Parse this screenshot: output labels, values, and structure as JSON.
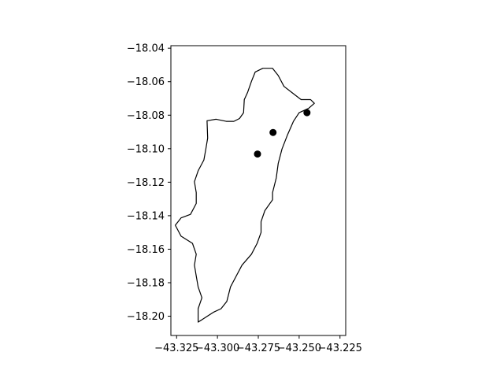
{
  "chart_data": {
    "type": "map",
    "title": "",
    "xlabel": "",
    "ylabel": "",
    "xlim": [
      -43.3285,
      -43.2215
    ],
    "ylim": [
      -18.2115,
      -18.0385
    ],
    "grid": false,
    "legend": null,
    "x_ticks": [
      -43.325,
      -43.3,
      -43.275,
      -43.25,
      -43.225
    ],
    "x_tick_labels": [
      "−43.325",
      "−43.300",
      "−43.275",
      "−43.250",
      "−43.225"
    ],
    "y_ticks": [
      -18.04,
      -18.06,
      -18.08,
      -18.1,
      -18.12,
      -18.14,
      -18.16,
      -18.18,
      -18.2
    ],
    "y_tick_labels": [
      "−18.04",
      "−18.06",
      "−18.08",
      "−18.10",
      "−18.12",
      "−18.14",
      "−18.16",
      "−18.18",
      "−18.20"
    ],
    "boundary": [
      [
        -43.3064,
        -18.0833
      ],
      [
        -43.3008,
        -18.0824
      ],
      [
        -43.2946,
        -18.0837
      ],
      [
        -43.29,
        -18.0837
      ],
      [
        -43.2865,
        -18.082
      ],
      [
        -43.284,
        -18.0785
      ],
      [
        -43.2836,
        -18.0707
      ],
      [
        -43.2815,
        -18.0663
      ],
      [
        -43.2792,
        -18.0598
      ],
      [
        -43.2769,
        -18.0542
      ],
      [
        -43.2722,
        -18.052
      ],
      [
        -43.2663,
        -18.052
      ],
      [
        -43.2628,
        -18.0563
      ],
      [
        -43.2593,
        -18.0628
      ],
      [
        -43.2535,
        -18.0672
      ],
      [
        -43.2488,
        -18.0707
      ],
      [
        -43.243,
        -18.0707
      ],
      [
        -43.2407,
        -18.0729
      ],
      [
        -43.2442,
        -18.0759
      ],
      [
        -43.25,
        -18.0785
      ],
      [
        -43.2535,
        -18.0837
      ],
      [
        -43.257,
        -18.0915
      ],
      [
        -43.2605,
        -18.1002
      ],
      [
        -43.2628,
        -18.1088
      ],
      [
        -43.264,
        -18.1175
      ],
      [
        -43.2663,
        -18.1262
      ],
      [
        -43.2663,
        -18.1305
      ],
      [
        -43.271,
        -18.137
      ],
      [
        -43.2733,
        -18.1435
      ],
      [
        -43.2733,
        -18.15
      ],
      [
        -43.2757,
        -18.1565
      ],
      [
        -43.2792,
        -18.163
      ],
      [
        -43.285,
        -18.1695
      ],
      [
        -43.2885,
        -18.176
      ],
      [
        -43.292,
        -18.1825
      ],
      [
        -43.2943,
        -18.1912
      ],
      [
        -43.2978,
        -18.1955
      ],
      [
        -43.3025,
        -18.1977
      ],
      [
        -43.306,
        -18.1999
      ],
      [
        -43.3095,
        -18.2021
      ],
      [
        -43.3118,
        -18.2035
      ],
      [
        -43.3118,
        -18.2008
      ],
      [
        -43.3118,
        -18.1955
      ],
      [
        -43.3095,
        -18.189
      ],
      [
        -43.3118,
        -18.1825
      ],
      [
        -43.313,
        -18.176
      ],
      [
        -43.3141,
        -18.1695
      ],
      [
        -43.313,
        -18.163
      ],
      [
        -43.3153,
        -18.1565
      ],
      [
        -43.3223,
        -18.1522
      ],
      [
        -43.3258,
        -18.1457
      ],
      [
        -43.3223,
        -18.1413
      ],
      [
        -43.3165,
        -18.1392
      ],
      [
        -43.313,
        -18.1327
      ],
      [
        -43.313,
        -18.1262
      ],
      [
        -43.3141,
        -18.1197
      ],
      [
        -43.3118,
        -18.1132
      ],
      [
        -43.3083,
        -18.1067
      ],
      [
        -43.3071,
        -18.1002
      ],
      [
        -43.306,
        -18.0937
      ],
      [
        -43.3064,
        -18.0833
      ]
    ],
    "points": [
      {
        "x": -43.2755,
        "y": -18.1032
      },
      {
        "x": -43.266,
        "y": -18.0903
      },
      {
        "x": -43.2452,
        "y": -18.0785
      }
    ],
    "colors": {
      "boundary": "#000000",
      "points": "#000000",
      "background": "#ffffff"
    }
  }
}
